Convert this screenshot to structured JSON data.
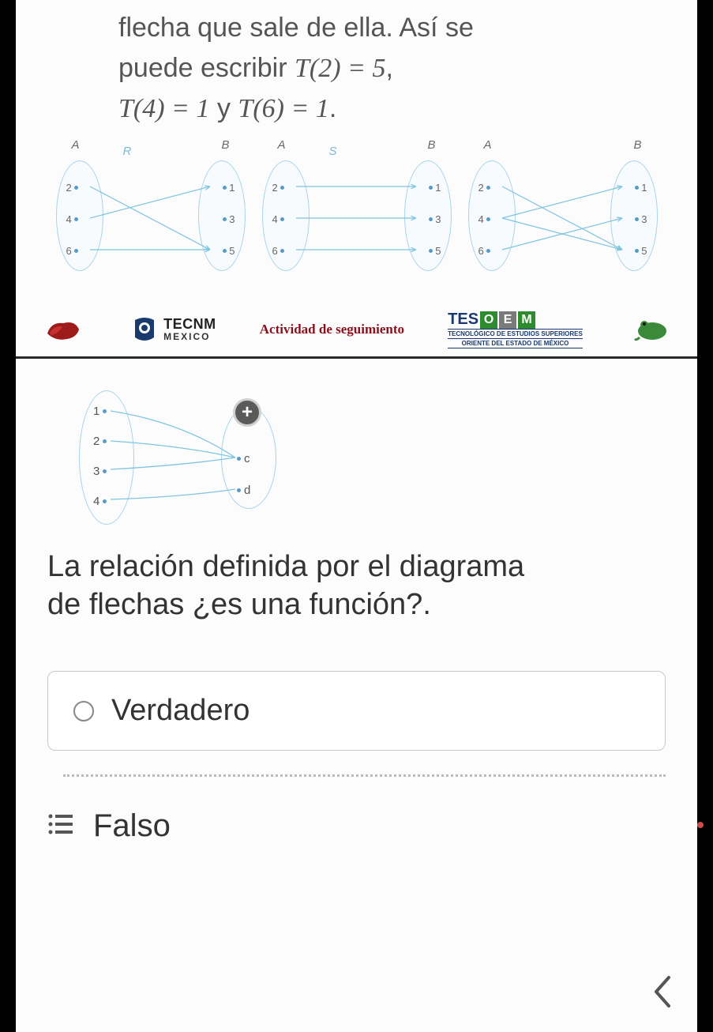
{
  "intro": {
    "line1": "flecha que sale de ella. Así se",
    "line2_a": "puede escribir ",
    "line2_math": "T(2) = 5",
    "line2_b": ",",
    "line3_math1": "T(4) = 1",
    "line3_mid": " y ",
    "line3_math2": "T(6) = 1",
    "line3_end": "."
  },
  "small_diagrams": [
    {
      "A_label": "A",
      "B_label": "B",
      "rel": "R",
      "A_points": [
        "2",
        "4",
        "6"
      ],
      "B_points": [
        "1",
        "3",
        "5"
      ],
      "arrows": [
        {
          "from": 0,
          "to": 2
        },
        {
          "from": 1,
          "to": 0
        },
        {
          "from": 2,
          "to": 2
        }
      ]
    },
    {
      "A_label": "A",
      "B_label": "B",
      "rel": "S",
      "A_points": [
        "2",
        "4",
        "6"
      ],
      "B_points": [
        "1",
        "3",
        "5"
      ],
      "arrows": [
        {
          "from": 0,
          "to": 0
        },
        {
          "from": 1,
          "to": 1
        },
        {
          "from": 2,
          "to": 2
        }
      ]
    },
    {
      "A_label": "A",
      "B_label": "B",
      "rel": "",
      "A_points": [
        "2",
        "4",
        "6"
      ],
      "B_points": [
        "1",
        "3",
        "5"
      ],
      "arrows": [
        {
          "from": 0,
          "to": 2
        },
        {
          "from": 1,
          "to": 0
        },
        {
          "from": 1,
          "to": 2
        },
        {
          "from": 2,
          "to": 1
        }
      ]
    }
  ],
  "footer": {
    "tecnm": "TECNM",
    "mexico": "MEXICO",
    "actividad": "Actividad de seguimiento",
    "tes": "TES",
    "oem_letters": [
      "O",
      "E",
      "M"
    ],
    "oem_colors": [
      "#2e8b2e",
      "#7a7a7a",
      "#2e8b2e"
    ],
    "tesoem_sub1": "TECNOLÓGICO DE ESTUDIOS SUPERIORES",
    "tesoem_sub2": "ORIENTE DEL ESTADO DE MÉXICO",
    "red_logo_color": "#9e1b1b",
    "blue_logo_color": "#1a3a6e",
    "green_logo_color": "#3a8a3a"
  },
  "question_diagram": {
    "left_points": [
      "1",
      "2",
      "3",
      "4"
    ],
    "right_points": [
      "c",
      "d"
    ],
    "plus_label": "+",
    "arrows": [
      {
        "from": 0,
        "to": 0
      },
      {
        "from": 1,
        "to": 0
      },
      {
        "from": 2,
        "to": 0
      },
      {
        "from": 3,
        "to": 1
      }
    ],
    "arrow_color": "#7fc4e0",
    "ellipse_color": "#a8d4e8"
  },
  "question": {
    "line1": "La relación definida por el diagrama",
    "line2": "de flechas ¿es una función?."
  },
  "options": {
    "verdadero": "Verdadero",
    "falso": "Falso"
  },
  "nav": {
    "menu_glyph": "≔",
    "back_glyph": "‹"
  },
  "colors": {
    "text_main": "#333333",
    "text_muted": "#555555",
    "border": "#c8c8c8",
    "background": "#fcfcfc",
    "accent_red": "#8a0f1a"
  }
}
